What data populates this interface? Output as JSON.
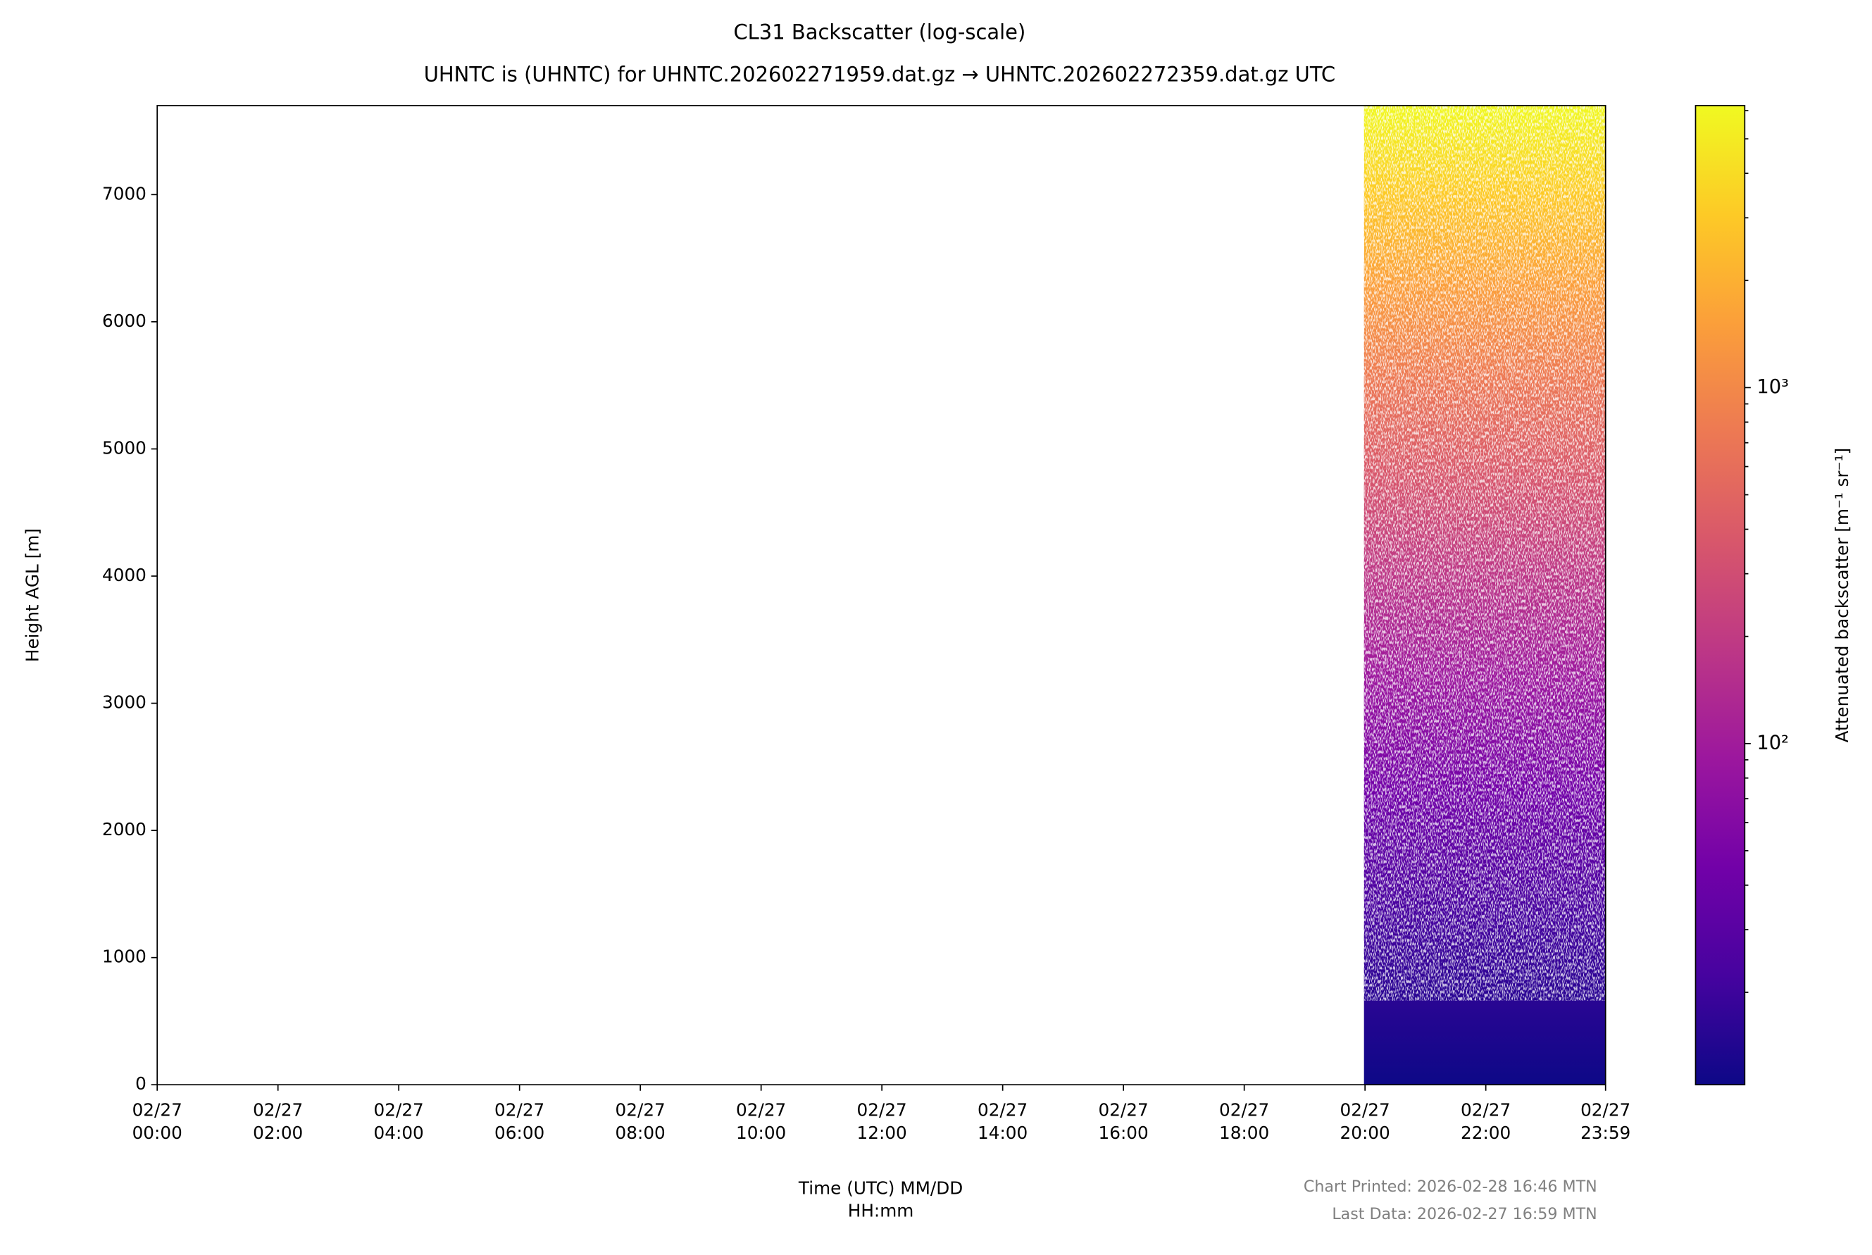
{
  "chart_data": {
    "type": "heatmap",
    "title": "CL31 Backscatter (log-scale)",
    "subtitle": "UHNTC is (UHNTC) for UHNTC.202602271959.dat.gz → UHNTC.202602272359.dat.gz UTC",
    "x_label": "Time (UTC) MM/DD\nHH:mm",
    "y_label": "Height AGL [m]",
    "colorbar_label": "Attenuated backscatter [m⁻¹ sr⁻¹]",
    "footer": [
      "Chart Printed: 2026-02-28 16:46 MTN",
      "Last Data: 2026-02-27 16:59 MTN"
    ],
    "xlim": [
      0,
      23.983
    ],
    "xticks": [
      {
        "value": 0,
        "label": "02/27\n00:00"
      },
      {
        "value": 2,
        "label": "02/27\n02:00"
      },
      {
        "value": 4,
        "label": "02/27\n04:00"
      },
      {
        "value": 6,
        "label": "02/27\n06:00"
      },
      {
        "value": 8,
        "label": "02/27\n08:00"
      },
      {
        "value": 10,
        "label": "02/27\n10:00"
      },
      {
        "value": 12,
        "label": "02/27\n12:00"
      },
      {
        "value": 14,
        "label": "02/27\n14:00"
      },
      {
        "value": 16,
        "label": "02/27\n16:00"
      },
      {
        "value": 18,
        "label": "02/27\n18:00"
      },
      {
        "value": 20,
        "label": "02/27\n20:00"
      },
      {
        "value": 22,
        "label": "02/27\n22:00"
      },
      {
        "value": 23.983,
        "label": "02/27\n23:59"
      }
    ],
    "ylim": [
      0,
      7700
    ],
    "yticks": [
      0,
      1000,
      2000,
      3000,
      4000,
      5000,
      6000,
      7000
    ],
    "data_x_range": [
      19.983,
      23.983
    ],
    "colorbar_lim": [
      11,
      6200
    ],
    "colorbar_log": true,
    "colorbar_ticks": [
      {
        "value": 100,
        "label": "10²"
      },
      {
        "value": 1000,
        "label": "10³"
      }
    ],
    "colorbar_minor_ticks": [
      20,
      30,
      40,
      50,
      60,
      70,
      80,
      90,
      200,
      300,
      400,
      500,
      600,
      700,
      800,
      900,
      2000,
      3000,
      4000,
      5000,
      6000
    ],
    "colormap": [
      "#0d0887",
      "#46039f",
      "#7201a8",
      "#9c179e",
      "#bd3786",
      "#d8576b",
      "#ed7953",
      "#fb9f3a",
      "#fdca26",
      "#f0f921"
    ]
  }
}
